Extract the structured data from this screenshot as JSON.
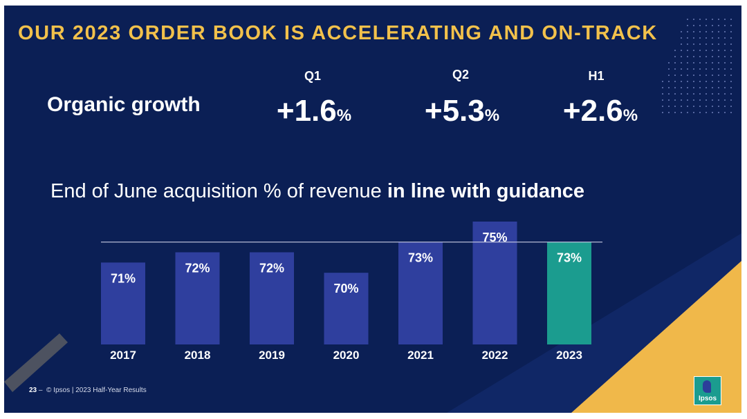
{
  "title": "OUR 2023 ORDER BOOK IS ACCELERATING AND ON-TRACK",
  "organic_growth": {
    "label": "Organic growth",
    "periods": [
      {
        "period": "Q1",
        "value": "+1.6",
        "unit": "%"
      },
      {
        "period": "Q2",
        "value": "+5.3",
        "unit": "%"
      },
      {
        "period": "H1",
        "value": "+2.6",
        "unit": "%"
      }
    ]
  },
  "subtitle": {
    "regular": "End of June acquisition % of revenue ",
    "bold": "in line with guidance"
  },
  "chart_data": {
    "type": "bar",
    "title": "End of June acquisition % of revenue in line with guidance",
    "categories": [
      "2017",
      "2018",
      "2019",
      "2020",
      "2021",
      "2022",
      "2023"
    ],
    "values": [
      71,
      72,
      72,
      70,
      73,
      75,
      73
    ],
    "data_labels": [
      "71%",
      "72%",
      "72%",
      "70%",
      "73%",
      "75%",
      "73%"
    ],
    "highlight": "2023",
    "reference_line": 73,
    "ylim": [
      63,
      75
    ],
    "xlabel": "",
    "ylabel": "",
    "colors": {
      "bar": "#2f3f9e",
      "highlight": "#1b9c8f",
      "line": "#c9cde3"
    }
  },
  "footer": {
    "page": "23",
    "dash": "–",
    "text": "© Ipsos | 2023 Half-Year Results"
  },
  "logo": {
    "text": "Ipsos"
  },
  "colors": {
    "background": "#0b1f55",
    "title": "#f2c14b",
    "accent_triangle": "#f0b84a"
  }
}
